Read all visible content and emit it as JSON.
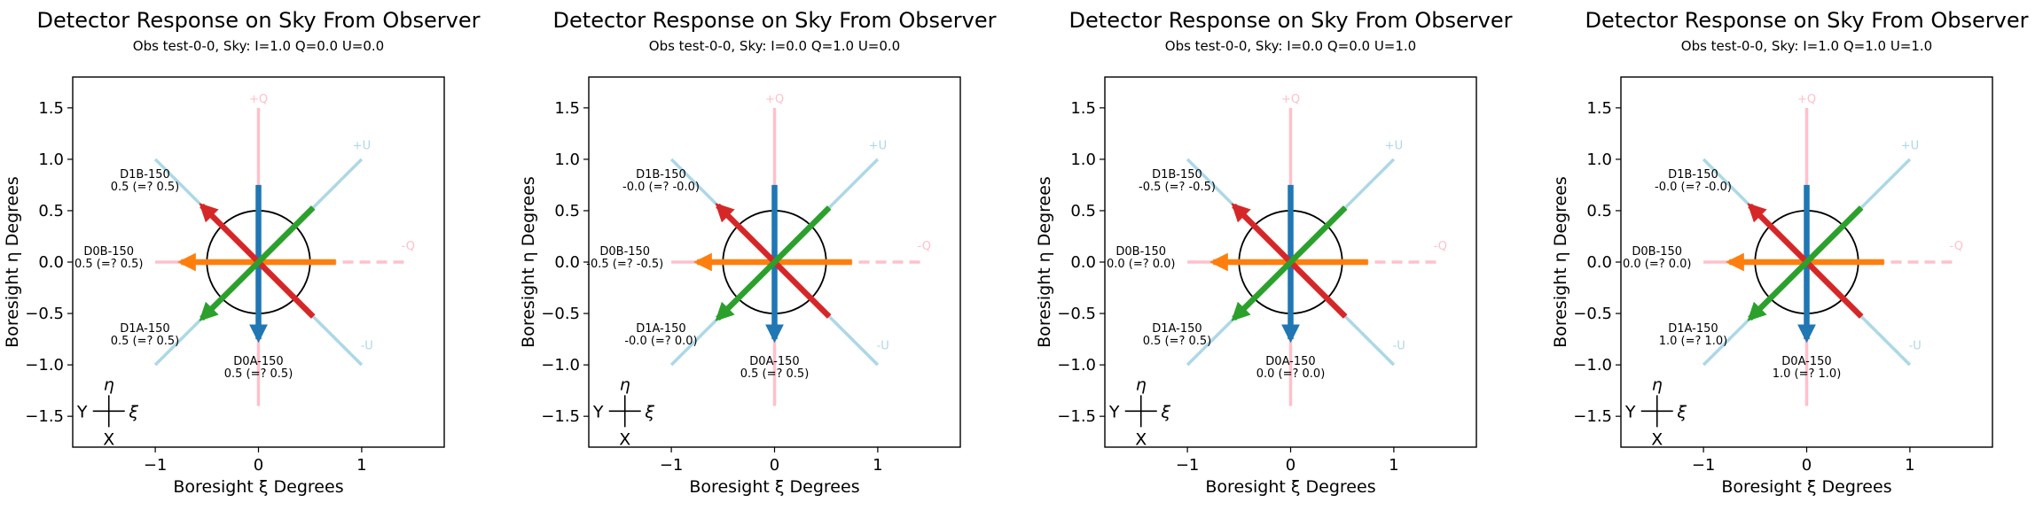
{
  "figure": {
    "panels": [
      {
        "title": "Detector Response on Sky From Observer",
        "subtitle": "Obs test-0-0, Sky: I=1.0 Q=0.0 U=0.0",
        "xlabel": "Boresight ξ Degrees",
        "ylabel": "Boresight η Degrees",
        "detectors": [
          {
            "name": "D1B-150",
            "value": "0.5 (=? 0.5)"
          },
          {
            "name": "D0B-150",
            "value": "0.5 (=? 0.5)"
          },
          {
            "name": "D1A-150",
            "value": "0.5 (=? 0.5)"
          },
          {
            "name": "D0A-150",
            "value": "0.5 (=? 0.5)"
          }
        ]
      },
      {
        "title": "Detector Response on Sky From Observer",
        "subtitle": "Obs test-0-0, Sky: I=0.0 Q=1.0 U=0.0",
        "xlabel": "Boresight ξ Degrees",
        "ylabel": "Boresight η Degrees",
        "detectors": [
          {
            "name": "D1B-150",
            "value": "-0.0 (=? -0.0)"
          },
          {
            "name": "D0B-150",
            "value": "-0.5 (=? -0.5)"
          },
          {
            "name": "D1A-150",
            "value": "-0.0 (=? 0.0)"
          },
          {
            "name": "D0A-150",
            "value": "0.5 (=? 0.5)"
          }
        ]
      },
      {
        "title": "Detector Response on Sky From Observer",
        "subtitle": "Obs test-0-0, Sky: I=0.0 Q=0.0 U=1.0",
        "xlabel": "Boresight ξ Degrees",
        "ylabel": "Boresight η Degrees",
        "detectors": [
          {
            "name": "D1B-150",
            "value": "-0.5 (=? -0.5)"
          },
          {
            "name": "D0B-150",
            "value": "0.0 (=? 0.0)"
          },
          {
            "name": "D1A-150",
            "value": "0.5 (=? 0.5)"
          },
          {
            "name": "D0A-150",
            "value": "0.0 (=? 0.0)"
          }
        ]
      },
      {
        "title": "Detector Response on Sky From Observer",
        "subtitle": "Obs test-0-0, Sky: I=1.0 Q=1.0 U=1.0",
        "xlabel": "Boresight ξ Degrees",
        "ylabel": "Boresight η Degrees",
        "detectors": [
          {
            "name": "D1B-150",
            "value": "-0.0 (=? -0.0)"
          },
          {
            "name": "D0B-150",
            "value": "0.0 (=? 0.0)"
          },
          {
            "name": "D1A-150",
            "value": "1.0 (=? 1.0)"
          },
          {
            "name": "D0A-150",
            "value": "1.0 (=? 1.0)"
          }
        ]
      }
    ],
    "stokes_labels": {
      "plus_q": "+Q",
      "minus_q": "-Q",
      "plus_u": "+U",
      "minus_u": "-U"
    },
    "compass_labels": {
      "eta": "η",
      "xi": "ξ",
      "y": "Y",
      "x": "X"
    },
    "colors": {
      "q_axis": "#ffc0cb",
      "u_axis": "#add8e6",
      "d0a": "#1f77b4",
      "d0b": "#ff7f0e",
      "d1a": "#2ca02c",
      "d1b": "#d62728"
    }
  },
  "chart_data": {
    "type": "line",
    "xlim": [
      -1.8,
      1.8
    ],
    "ylim": [
      -1.8,
      1.8
    ],
    "xticks": [
      -1,
      0,
      1
    ],
    "yticks": [
      -1.5,
      -1.0,
      -0.5,
      0.0,
      0.5,
      1.0,
      1.5
    ],
    "xtick_labels": [
      "−1",
      "0",
      "1"
    ],
    "ytick_labels": [
      "−1.5",
      "−1.0",
      "−0.5",
      "0.0",
      "0.5",
      "1.0",
      "1.5"
    ],
    "grid": false,
    "focal_plane_circle": {
      "center": [
        0,
        0
      ],
      "radius": 0.5
    },
    "stokes_lines": [
      {
        "name": "+Q",
        "x": [
          0,
          0
        ],
        "y": [
          0,
          1.5
        ],
        "style": "solid"
      },
      {
        "name": "-Q",
        "x": [
          0,
          1.5
        ],
        "y": [
          0,
          0
        ],
        "style": "dashed"
      },
      {
        "name": "+U",
        "x": [
          0,
          -1.0
        ],
        "y": [
          0,
          1.0
        ],
        "style": "solid"
      },
      {
        "name": "+U",
        "x": [
          0,
          1.0
        ],
        "y": [
          0,
          1.0
        ],
        "style": "solid"
      },
      {
        "name": "-U",
        "x": [
          0,
          1.0
        ],
        "y": [
          0,
          -1.0
        ],
        "style": "dashed"
      },
      {
        "name": "-U",
        "x": [
          0,
          -1.0
        ],
        "y": [
          0,
          -1.0
        ],
        "style": "solid"
      },
      {
        "name": "+Q",
        "x": [
          0,
          0
        ],
        "y": [
          0,
          -1.4
        ],
        "style": "solid"
      },
      {
        "name": "-Q",
        "x": [
          0,
          -1.5
        ],
        "y": [
          0,
          0
        ],
        "style": "solid"
      }
    ],
    "detector_arrows": [
      {
        "name": "D0A-150",
        "from": [
          0,
          0.75
        ],
        "to": [
          0,
          -0.75
        ]
      },
      {
        "name": "D0B-150",
        "from": [
          0.75,
          0
        ],
        "to": [
          -0.75,
          0
        ]
      },
      {
        "name": "D1A-150",
        "from": [
          0.53,
          0.53
        ],
        "to": [
          -0.55,
          -0.55
        ]
      },
      {
        "name": "D1B-150",
        "from": [
          0.53,
          -0.53
        ],
        "to": [
          -0.55,
          0.55
        ]
      }
    ]
  }
}
